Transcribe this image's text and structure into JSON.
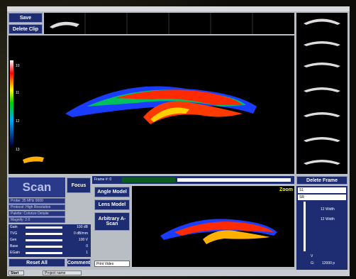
{
  "toolbar": {
    "save": "Save",
    "delete_clip": "Delete Clip"
  },
  "depth_scale": [
    "10",
    "11",
    "12",
    "13"
  ],
  "frame_bar": {
    "label": "Frame #: 0"
  },
  "right_panel": {
    "delete_frame": "Delete Frame",
    "fields": [
      "S1",
      "SR"
    ],
    "widths": [
      "12 Width",
      "12 Width"
    ],
    "v": "V",
    "g": "G:",
    "g_value": "12000 p"
  },
  "left_panel": {
    "mode": "Scan",
    "focus": "Focus",
    "settings": [
      "Probe: 35 MHz 0000",
      "Protocol: High Resolution",
      "Palette: Colorize Detaile",
      "Magnify: 2.0"
    ],
    "sliders": [
      {
        "name": "Gain",
        "value": "100 dB"
      },
      {
        "name": "TVG",
        "value": "0 dB/mm"
      },
      {
        "name": "Gen",
        "value": "100 V"
      },
      {
        "name": "Base",
        "value": "0"
      },
      {
        "name": "EGain",
        "value": "1"
      }
    ],
    "reset": "Reset All",
    "comment": "Comment"
  },
  "tools": {
    "buttons": [
      "Angle Model",
      "Lens Model",
      "Arbitrary A-Scan"
    ],
    "print_video": "Print Video"
  },
  "preview": {
    "zoom": "Zoom"
  },
  "taskbar": {
    "start": "Start",
    "task": "Project name"
  }
}
